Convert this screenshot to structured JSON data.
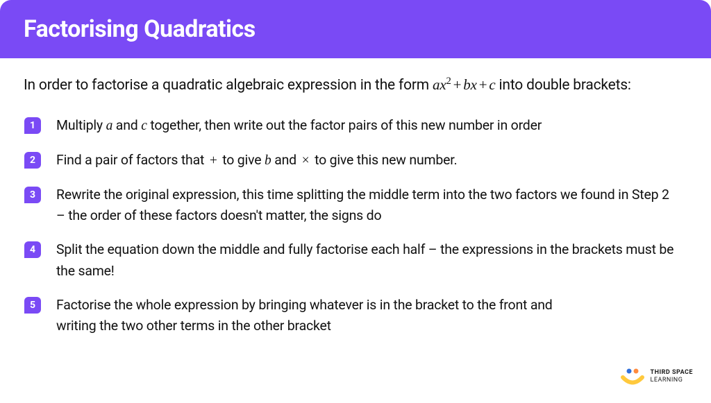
{
  "header": {
    "title": "Factorising Quadratics",
    "background_color": "#7a4af5",
    "text_color": "#ffffff"
  },
  "intro": {
    "prefix": "In order to factorise a quadratic algebraic expression in the form ",
    "expression_html": "ax<sup>2</sup> + bx + c",
    "suffix": " into double brackets:"
  },
  "badge": {
    "background_color": "#7a4af5",
    "text_color": "#ffffff"
  },
  "steps": [
    {
      "num": "1",
      "parts": [
        "Multiply ",
        {
          "mi": "a"
        },
        "  and  ",
        {
          "mi": "c"
        },
        "  together, then write out the factor pairs of this new number in order"
      ]
    },
    {
      "num": "2",
      "parts": [
        "Find a pair of factors that ",
        {
          "op": "+"
        },
        " to give ",
        {
          "mi": "b"
        },
        "  and ",
        {
          "op": "×"
        },
        " to give this new number."
      ]
    },
    {
      "num": "3",
      "parts": [
        "Rewrite the original expression, this time splitting the middle term into the two factors we found in Step 2 – the order of these factors doesn't matter, the signs do"
      ]
    },
    {
      "num": "4",
      "parts": [
        "Split the equation down the middle and fully factorise each half – the expressions in the brackets must be the same!"
      ]
    },
    {
      "num": "5",
      "parts": [
        "Factorise the whole expression by bringing whatever is in the bracket to the front and writing the two other terms in the other bracket"
      ]
    }
  ],
  "logo": {
    "line1": "THIRD SPACE",
    "line2": "LEARNING",
    "dot1_color": "#2f6fdb",
    "dot2_color": "#ff8a3d",
    "arc_color": "#ffc93d"
  },
  "typography": {
    "title_fontsize": 34,
    "intro_fontsize": 21,
    "step_fontsize": 19.5,
    "text_color": "#111111"
  }
}
